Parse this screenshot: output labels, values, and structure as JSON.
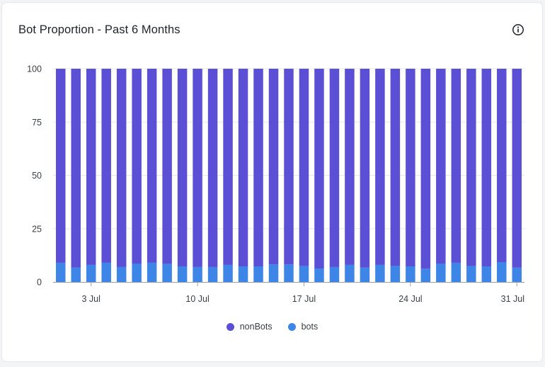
{
  "card": {
    "title": "Bot Proportion - Past 6 Months"
  },
  "colors": {
    "nonBots": "#5b4fd6",
    "bots": "#3d86e8",
    "grid": "#e7e8eb",
    "axis": "#9aa0a6"
  },
  "legend": [
    {
      "key": "nonBots",
      "label": "nonBots"
    },
    {
      "key": "bots",
      "label": "bots"
    }
  ],
  "chart_data": {
    "type": "bar",
    "stacked": true,
    "ylim": [
      0,
      100
    ],
    "yticks": [
      0,
      25,
      50,
      75,
      100
    ],
    "categories": [
      "1 Jul",
      "2 Jul",
      "3 Jul",
      "4 Jul",
      "5 Jul",
      "6 Jul",
      "7 Jul",
      "8 Jul",
      "9 Jul",
      "10 Jul",
      "11 Jul",
      "12 Jul",
      "13 Jul",
      "14 Jul",
      "15 Jul",
      "16 Jul",
      "17 Jul",
      "18 Jul",
      "19 Jul",
      "20 Jul",
      "21 Jul",
      "22 Jul",
      "23 Jul",
      "24 Jul",
      "25 Jul",
      "26 Jul",
      "27 Jul",
      "28 Jul",
      "29 Jul",
      "30 Jul",
      "31 Jul"
    ],
    "xtick_labels": [
      "3 Jul",
      "10 Jul",
      "17 Jul",
      "24 Jul",
      "31 Jul"
    ],
    "series": [
      {
        "name": "bots",
        "values": [
          9,
          6.7,
          8,
          9,
          7,
          8.5,
          9,
          8.5,
          7.3,
          7,
          7,
          8,
          7.3,
          7.3,
          8.2,
          8.2,
          7.5,
          6.3,
          7,
          8,
          6.7,
          8,
          7.5,
          7.3,
          6.2,
          8.5,
          9,
          7.5,
          7.3,
          9.3,
          6.7
        ]
      },
      {
        "name": "nonBots",
        "values": [
          91,
          93.3,
          92,
          91,
          93,
          91.5,
          91,
          91.5,
          92.7,
          93,
          93,
          92,
          92.7,
          92.7,
          91.8,
          91.8,
          92.5,
          93.7,
          93,
          92,
          93.3,
          92,
          92.5,
          92.7,
          93.8,
          91.5,
          91,
          92.5,
          92.7,
          90.7,
          93.3
        ]
      }
    ],
    "grid": true,
    "legend_position": "bottom-center"
  }
}
